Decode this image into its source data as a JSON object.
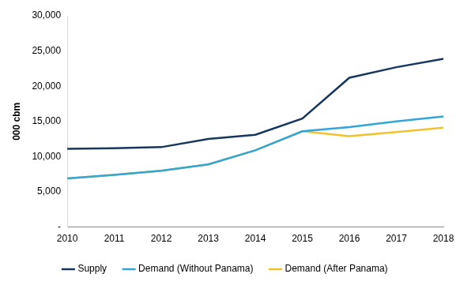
{
  "chart_data": {
    "type": "line",
    "y_label": "000 cbm",
    "categories": [
      "2010",
      "2011",
      "2012",
      "2013",
      "2014",
      "2015",
      "2016",
      "2017",
      "2018"
    ],
    "series": [
      {
        "name": "Supply",
        "color": "#17375e",
        "values": [
          11100,
          11200,
          11350,
          12500,
          13100,
          15400,
          21200,
          22700,
          23900
        ]
      },
      {
        "name": "Demand (Without Panama)",
        "color": "#31a6d9",
        "values": [
          6900,
          7400,
          8000,
          8900,
          10900,
          13600,
          14200,
          15000,
          15700
        ]
      },
      {
        "name": "Demand (After Panama)",
        "color": "#f2c12e",
        "values": [
          6900,
          7400,
          8000,
          8900,
          10900,
          13600,
          12900,
          13500,
          14100
        ]
      }
    ],
    "ylim": [
      0,
      30000
    ],
    "yticks": [
      {
        "value": 0,
        "label": "-"
      },
      {
        "value": 5000,
        "label": "5,000"
      },
      {
        "value": 10000,
        "label": "10,000"
      },
      {
        "value": 15000,
        "label": "15,000"
      },
      {
        "value": 20000,
        "label": "20,000"
      },
      {
        "value": 25000,
        "label": "25,000"
      },
      {
        "value": 30000,
        "label": "30,000"
      }
    ],
    "grid": false,
    "legend": "bottom"
  }
}
